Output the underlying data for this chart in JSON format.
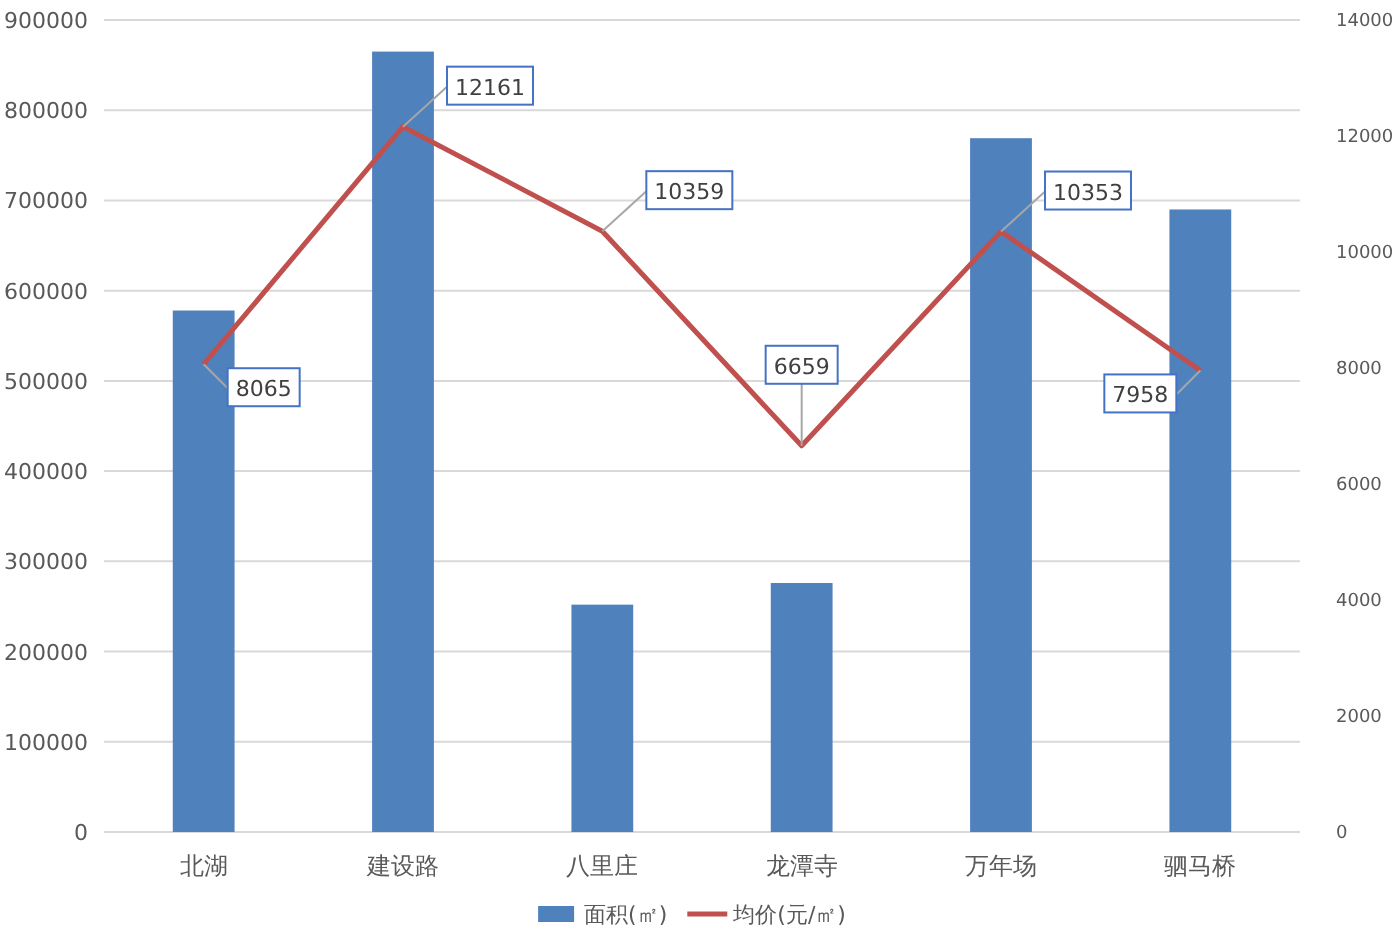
{
  "chart_data": {
    "type": "bar",
    "categories": [
      "北湖",
      "建设路",
      "八里庄",
      "龙潭寺",
      "万年场",
      "驷马桥"
    ],
    "series": [
      {
        "name": "面积(㎡)",
        "color": "#4f81bd",
        "values": [
          578000,
          865000,
          252000,
          276000,
          769000,
          690000
        ]
      },
      {
        "name": "均价(元/㎡)",
        "type": "line",
        "axis": "y2",
        "color": "#c0504d",
        "values": [
          8065,
          12161,
          10359,
          6659,
          10353,
          7958
        ],
        "value_labels": [
          "8065",
          "12161",
          "10359",
          "6659",
          "10353",
          "7958"
        ]
      }
    ],
    "ylim": [
      0,
      900000
    ],
    "yticks": [
      0,
      100000,
      200000,
      300000,
      400000,
      500000,
      600000,
      700000,
      800000,
      900000
    ],
    "y2lim": [
      0,
      14000
    ],
    "y2ticks": [
      0,
      2000,
      4000,
      6000,
      8000,
      10000,
      12000,
      14000
    ],
    "grid": "y",
    "legend": "bottom",
    "marker": "none",
    "line_style": "solid"
  }
}
